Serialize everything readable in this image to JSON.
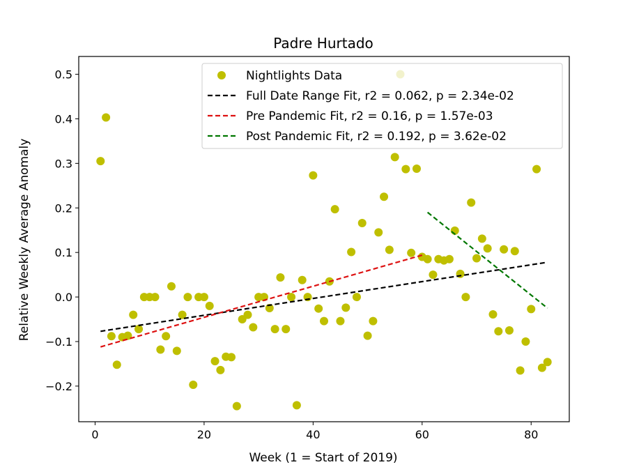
{
  "chart_data": {
    "type": "scatter",
    "title": "Padre Hurtado",
    "xlabel": "Week (1 = Start of 2019)",
    "ylabel": "Relative Weekly Average Anomaly",
    "xlim": [
      -3,
      87
    ],
    "ylim": [
      -0.28,
      0.54
    ],
    "x_ticks": [
      0,
      20,
      40,
      60,
      80
    ],
    "y_ticks": [
      -0.2,
      -0.1,
      0.0,
      0.1,
      0.2,
      0.3,
      0.4,
      0.5
    ],
    "x_tick_labels": [
      "0",
      "20",
      "40",
      "60",
      "80"
    ],
    "y_tick_labels": [
      "−0.2",
      "−0.1",
      "0.0",
      "0.1",
      "0.2",
      "0.3",
      "0.4",
      "0.5"
    ],
    "grid": false,
    "legend_position": "top-right",
    "series": [
      {
        "name": "Nightlights Data",
        "kind": "scatter",
        "color": "#bfbf00",
        "points": [
          [
            1,
            0.305
          ],
          [
            2,
            0.403
          ],
          [
            3,
            -0.088
          ],
          [
            4,
            -0.152
          ],
          [
            5,
            -0.09
          ],
          [
            6,
            -0.087
          ],
          [
            7,
            -0.04
          ],
          [
            8,
            -0.072
          ],
          [
            9,
            0.0
          ],
          [
            10,
            0.0
          ],
          [
            11,
            0.0
          ],
          [
            12,
            -0.118
          ],
          [
            13,
            -0.088
          ],
          [
            14,
            0.024
          ],
          [
            15,
            -0.121
          ],
          [
            16,
            -0.04
          ],
          [
            17,
            0.0
          ],
          [
            18,
            -0.197
          ],
          [
            19,
            0.0
          ],
          [
            20,
            0.0
          ],
          [
            21,
            -0.02
          ],
          [
            22,
            -0.144
          ],
          [
            23,
            -0.164
          ],
          [
            24,
            -0.134
          ],
          [
            25,
            -0.135
          ],
          [
            26,
            -0.245
          ],
          [
            27,
            -0.05
          ],
          [
            28,
            -0.04
          ],
          [
            29,
            -0.068
          ],
          [
            30,
            0.0
          ],
          [
            31,
            0.0
          ],
          [
            32,
            -0.025
          ],
          [
            33,
            -0.072
          ],
          [
            34,
            0.044
          ],
          [
            35,
            -0.072
          ],
          [
            36,
            0.0
          ],
          [
            37,
            -0.243
          ],
          [
            38,
            0.038
          ],
          [
            39,
            0.0
          ],
          [
            40,
            0.273
          ],
          [
            41,
            -0.026
          ],
          [
            42,
            -0.054
          ],
          [
            43,
            0.035
          ],
          [
            44,
            0.197
          ],
          [
            45,
            -0.054
          ],
          [
            46,
            -0.024
          ],
          [
            47,
            0.101
          ],
          [
            48,
            0.0
          ],
          [
            49,
            0.166
          ],
          [
            50,
            -0.087
          ],
          [
            51,
            -0.054
          ],
          [
            52,
            0.145
          ],
          [
            53,
            0.225
          ],
          [
            54,
            0.106
          ],
          [
            55,
            0.314
          ],
          [
            56,
            0.5
          ],
          [
            57,
            0.287
          ],
          [
            58,
            0.099
          ],
          [
            59,
            0.288
          ],
          [
            60,
            0.09
          ],
          [
            61,
            0.085
          ],
          [
            62,
            0.05
          ],
          [
            63,
            0.085
          ],
          [
            64,
            0.082
          ],
          [
            65,
            0.085
          ],
          [
            66,
            0.149
          ],
          [
            67,
            0.052
          ],
          [
            68,
            0.0
          ],
          [
            69,
            0.212
          ],
          [
            70,
            0.087
          ],
          [
            71,
            0.131
          ],
          [
            72,
            0.109
          ],
          [
            73,
            -0.039
          ],
          [
            74,
            -0.077
          ],
          [
            75,
            0.107
          ],
          [
            76,
            -0.075
          ],
          [
            77,
            0.103
          ],
          [
            78,
            -0.165
          ],
          [
            79,
            -0.1
          ],
          [
            80,
            -0.027
          ],
          [
            81,
            0.287
          ],
          [
            82,
            -0.159
          ],
          [
            83,
            -0.146
          ]
        ]
      },
      {
        "name": "Full Date Range Fit, r2 = 0.062, p = 2.34e-02",
        "kind": "line",
        "style": "dashed",
        "color": "#000000",
        "x": [
          1,
          83
        ],
        "y": [
          -0.077,
          0.078
        ]
      },
      {
        "name": "Pre Pandemic Fit, r2 = 0.16, p = 1.57e-03",
        "kind": "line",
        "style": "dashed",
        "color": "#dd1111",
        "x": [
          1,
          60
        ],
        "y": [
          -0.112,
          0.094
        ]
      },
      {
        "name": "Post Pandemic Fit, r2 = 0.192, p = 3.62e-02",
        "kind": "line",
        "style": "dashed",
        "color": "#007700",
        "x": [
          61,
          83
        ],
        "y": [
          0.19,
          -0.025
        ]
      }
    ]
  }
}
